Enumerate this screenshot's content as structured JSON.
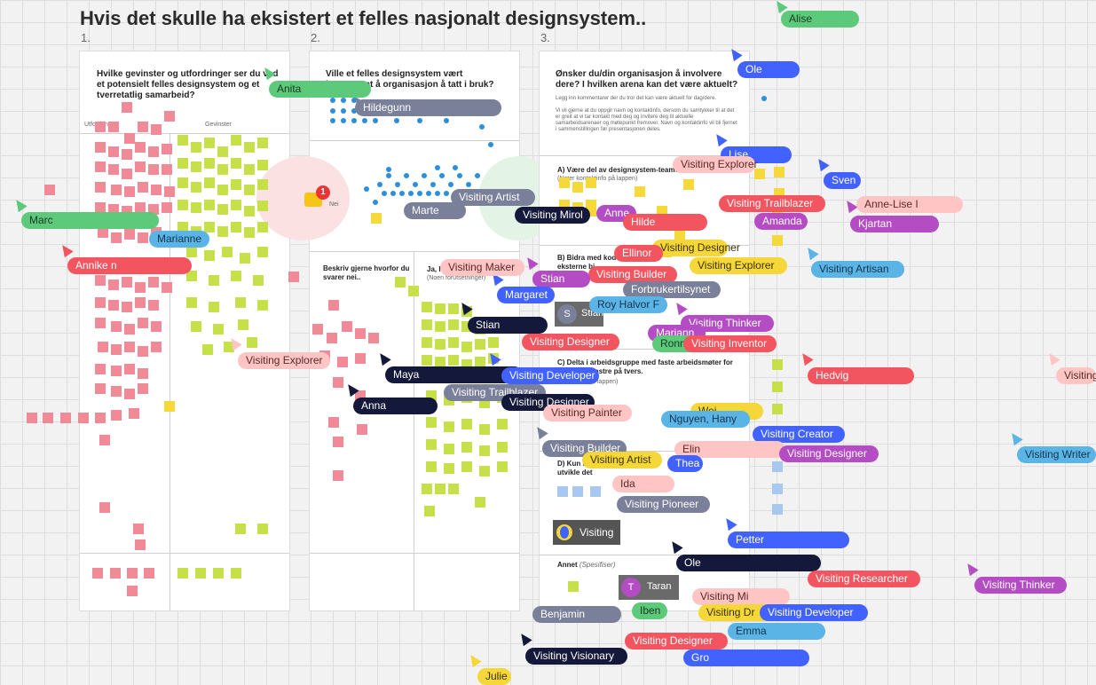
{
  "board": {
    "title": "Hvis det skulle ha eksistert et felles nasjonalt designsystem..",
    "columns": [
      "1.",
      "2.",
      "3."
    ]
  },
  "panel1": {
    "question": "Hvilke gevinster og utfordringer ser du ved et potensielt felles designsystem og et tverretatlig samarbeid?",
    "left_header": "Utfordringer",
    "right_header": "Gevinster"
  },
  "panel2": {
    "question": "Ville et felles designsystem vært interessant å organisasjon å tatt i bruk?",
    "no_heading": "Beskriv gjerne hvorfor du svarer nei..",
    "yes_heading": "Ja, h",
    "yes_sub": "(Noen forutsetninger)",
    "comment_count": "1",
    "comment_label": "Nei"
  },
  "panel3": {
    "question": "Ønsker du/din organisasjon å involvere dere? I hvilken arena kan det være aktuelt?",
    "intro1": "Legg inn kommentarer der du tror det kan være aktuelt for dag/dere.",
    "intro2": "Vi vil gjerne at du oppgir navn og kontaktinfo, dersom du samtykker til at det er greit at vi tar kontakt med deg og invitere deg til aktuelle samarbeidsarenaer og møtepunkt fremover. Navn og kontaktinfo vil bli fjernet i sammenstillingen før presentasjonen deles.",
    "section_a": "A) Være del av designsystem-teamet",
    "section_a_sub": "(Noter kontaktinfo på lappen)",
    "section_b": "B) Bidra med kode eksterne bi",
    "section_c": "C) Delta i arbeidsgruppe med faste arbeidsmøter for å likere mønstre på tvers.",
    "section_c_sub": "lappen)",
    "section_d": "D) Kun ta være med å utvikle det",
    "section_e": "Annet",
    "section_e_sub": "(Spesifiser)",
    "logo_text": "Visiting"
  },
  "avatars": [
    {
      "letter": "S",
      "name": "Stian"
    },
    {
      "letter": "T",
      "name": "Taran"
    }
  ],
  "tags": [
    {
      "name": "Alise",
      "color": "#5cc97b",
      "text_color": "#1a3a22"
    },
    {
      "name": "Ole",
      "color": "#4262ff",
      "text_color": "#ffffff"
    },
    {
      "name": "Anita",
      "color": "#5cc97b",
      "text_color": "#1a3a22"
    },
    {
      "name": "Hildegunn",
      "color": "#7a7f9a",
      "text_color": "#ffffff"
    },
    {
      "name": "Lise",
      "color": "#4262ff",
      "text_color": "#ffffff"
    },
    {
      "name": "Visiting Explorer",
      "color": "#ffc4c4",
      "text_color": "#5a2a2a"
    },
    {
      "name": "Sven",
      "color": "#4262ff",
      "text_color": "#ffffff"
    },
    {
      "name": "Visiting Artist",
      "color": "#7a7f9a",
      "text_color": "#ffffff"
    },
    {
      "name": "Marte",
      "color": "#7a7f9a",
      "text_color": "#ffffff"
    },
    {
      "name": "Visiting Mirol",
      "color": "#14183a",
      "text_color": "#ffffff"
    },
    {
      "name": "Anne",
      "color": "#b44dc4",
      "text_color": "#ffffff"
    },
    {
      "name": "Visiting Trailblazer",
      "color": "#f2555f",
      "text_color": "#ffffff"
    },
    {
      "name": "Anne-Lise I",
      "color": "#ffc4c4",
      "text_color": "#5a2a2a"
    },
    {
      "name": "Marc",
      "color": "#5cc97b",
      "text_color": "#1a3a22"
    },
    {
      "name": "Hilde",
      "color": "#f2555f",
      "text_color": "#ffffff"
    },
    {
      "name": "Amanda",
      "color": "#b44dc4",
      "text_color": "#ffffff"
    },
    {
      "name": "Kjartan",
      "color": "#b44dc4",
      "text_color": "#ffffff"
    },
    {
      "name": "Marianne",
      "color": "#5ab4e6",
      "text_color": "#13344a"
    },
    {
      "name": "Visiting Designer",
      "color": "#f5d73a",
      "text_color": "#3a3100"
    },
    {
      "name": "Annike n",
      "color": "#f2555f",
      "text_color": "#ffffff"
    },
    {
      "name": "Ellinor",
      "color": "#f2555f",
      "text_color": "#ffffff"
    },
    {
      "name": "Visiting Explorer",
      "color": "#f5d73a",
      "text_color": "#3a3100"
    },
    {
      "name": "Visiting Artisan",
      "color": "#5ab4e6",
      "text_color": "#13344a"
    },
    {
      "name": "Visiting Maker",
      "color": "#ffc4c4",
      "text_color": "#5a2a2a"
    },
    {
      "name": "Visiting Builder",
      "color": "#f2555f",
      "text_color": "#ffffff"
    },
    {
      "name": "Stian",
      "color": "#b44dc4",
      "text_color": "#ffffff"
    },
    {
      "name": "Forbrukertilsynet",
      "color": "#7a7f9a",
      "text_color": "#ffffff"
    },
    {
      "name": "Margaret",
      "color": "#4262ff",
      "text_color": "#ffffff"
    },
    {
      "name": "Roy Halvor F",
      "color": "#5ab4e6",
      "text_color": "#13344a"
    },
    {
      "name": "Stian",
      "color": "#14183a",
      "text_color": "#ffffff"
    },
    {
      "name": "Visiting Thinker",
      "color": "#b44dc4",
      "text_color": "#ffffff"
    },
    {
      "name": "Mariann",
      "color": "#b44dc4",
      "text_color": "#ffffff"
    },
    {
      "name": "Visiting Designer",
      "color": "#f2555f",
      "text_color": "#ffffff"
    },
    {
      "name": "Ronny A",
      "color": "#5cc97b",
      "text_color": "#1a3a22"
    },
    {
      "name": "Visiting Inventor",
      "color": "#f2555f",
      "text_color": "#ffffff"
    },
    {
      "name": "Visiting Explorer",
      "color": "#ffc4c4",
      "text_color": "#5a2a2a"
    },
    {
      "name": "Hedvig",
      "color": "#f2555f",
      "text_color": "#ffffff"
    },
    {
      "name": "Visiting",
      "color": "#ffc4c4",
      "text_color": "#5a2a2a"
    },
    {
      "name": "Maya",
      "color": "#14183a",
      "text_color": "#ffffff"
    },
    {
      "name": "Visiting Developer",
      "color": "#4262ff",
      "text_color": "#ffffff"
    },
    {
      "name": "Visiting Trailblazer",
      "color": "#7a7f9a",
      "text_color": "#ffffff"
    },
    {
      "name": "Visiting Designer",
      "color": "#14183a",
      "text_color": "#ffffff"
    },
    {
      "name": "Anna",
      "color": "#14183a",
      "text_color": "#ffffff"
    },
    {
      "name": "Visiting Painter",
      "color": "#ffc4c4",
      "text_color": "#5a2a2a"
    },
    {
      "name": "Wei",
      "color": "#f5d73a",
      "text_color": "#3a3100"
    },
    {
      "name": "Nguyen, Hany",
      "color": "#5ab4e6",
      "text_color": "#13344a"
    },
    {
      "name": "Visiting Creator",
      "color": "#4262ff",
      "text_color": "#ffffff"
    },
    {
      "name": "Visiting Builder",
      "color": "#7a7f9a",
      "text_color": "#ffffff"
    },
    {
      "name": "Elin",
      "color": "#ffc4c4",
      "text_color": "#5a2a2a"
    },
    {
      "name": "Visiting Designer",
      "color": "#b44dc4",
      "text_color": "#ffffff"
    },
    {
      "name": "Visiting Artist",
      "color": "#f5d73a",
      "text_color": "#3a3100"
    },
    {
      "name": "Thea",
      "color": "#4262ff",
      "text_color": "#ffffff"
    },
    {
      "name": "Visiting Writer",
      "color": "#5ab4e6",
      "text_color": "#13344a"
    },
    {
      "name": "Ida",
      "color": "#ffc4c4",
      "text_color": "#5a2a2a"
    },
    {
      "name": "Visiting Pioneer",
      "color": "#7a7f9a",
      "text_color": "#ffffff"
    },
    {
      "name": "Petter",
      "color": "#4262ff",
      "text_color": "#ffffff"
    },
    {
      "name": "Ole",
      "color": "#14183a",
      "text_color": "#ffffff"
    },
    {
      "name": "Visiting Researcher",
      "color": "#f2555f",
      "text_color": "#ffffff"
    },
    {
      "name": "Visiting Thinker",
      "color": "#b44dc4",
      "text_color": "#ffffff"
    },
    {
      "name": "Visiting Mi",
      "color": "#ffc4c4",
      "text_color": "#5a2a2a"
    },
    {
      "name": "Visiting Dr",
      "color": "#f5d73a",
      "text_color": "#3a3100"
    },
    {
      "name": "Visiting Developer",
      "color": "#4262ff",
      "text_color": "#ffffff"
    },
    {
      "name": "Benjamin",
      "color": "#7a7f9a",
      "text_color": "#ffffff"
    },
    {
      "name": "Iben",
      "color": "#5cc97b",
      "text_color": "#1a3a22"
    },
    {
      "name": "Emma",
      "color": "#5ab4e6",
      "text_color": "#13344a"
    },
    {
      "name": "Visiting Designer",
      "color": "#f2555f",
      "text_color": "#ffffff"
    },
    {
      "name": "Visiting Visionary",
      "color": "#14183a",
      "text_color": "#ffffff"
    },
    {
      "name": "Gro",
      "color": "#4262ff",
      "text_color": "#ffffff"
    },
    {
      "name": "Julie",
      "color": "#f5d73a",
      "text_color": "#3a3100"
    }
  ]
}
